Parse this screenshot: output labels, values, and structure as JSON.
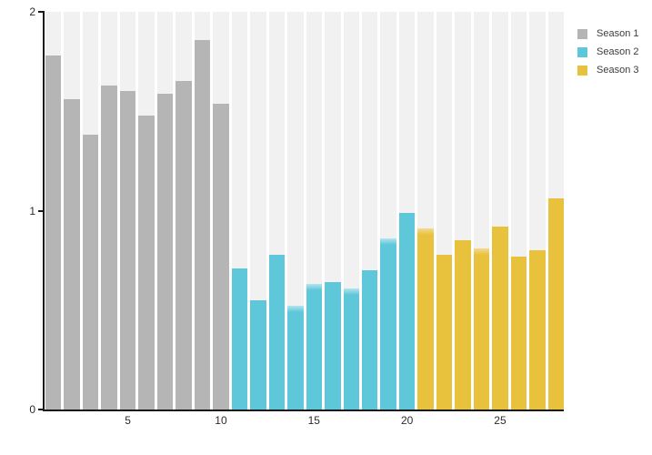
{
  "chart_data": {
    "type": "bar",
    "title": "",
    "xlabel": "",
    "ylabel": "",
    "ylim": [
      0,
      2
    ],
    "yticks": [
      0,
      1,
      2
    ],
    "xticks": [
      5,
      10,
      15,
      20,
      25
    ],
    "n_bars": 28,
    "grid": false,
    "legend_position": "top-right-outside",
    "colors": {
      "background_column": "#f1f1f1",
      "axis": "#1a1a1a",
      "tick_label": "#2b2b2b",
      "legend_text": "#3d3d3d"
    },
    "series": [
      {
        "name": "Season 1",
        "color": "#b5b5b5",
        "soft_color": "#d8d8d8",
        "x_start": 1,
        "values": [
          1.78,
          1.56,
          1.38,
          1.63,
          1.6,
          1.48,
          1.59,
          1.65,
          1.86,
          1.54
        ]
      },
      {
        "name": "Season 2",
        "color": "#5ec7d9",
        "soft_color": "#b5e4ee",
        "x_start": 11,
        "values": [
          0.71,
          0.55,
          0.78,
          0.52,
          0.63,
          0.64,
          0.61,
          0.7,
          0.86,
          0.99
        ]
      },
      {
        "name": "Season 3",
        "color": "#e9c23d",
        "soft_color": "#f2da92",
        "x_start": 21,
        "values": [
          0.91,
          0.78,
          0.85,
          0.81,
          0.92,
          0.77,
          0.8,
          1.06
        ]
      }
    ],
    "soft_top_bars": [
      14,
      15,
      17,
      19,
      21,
      24
    ]
  }
}
